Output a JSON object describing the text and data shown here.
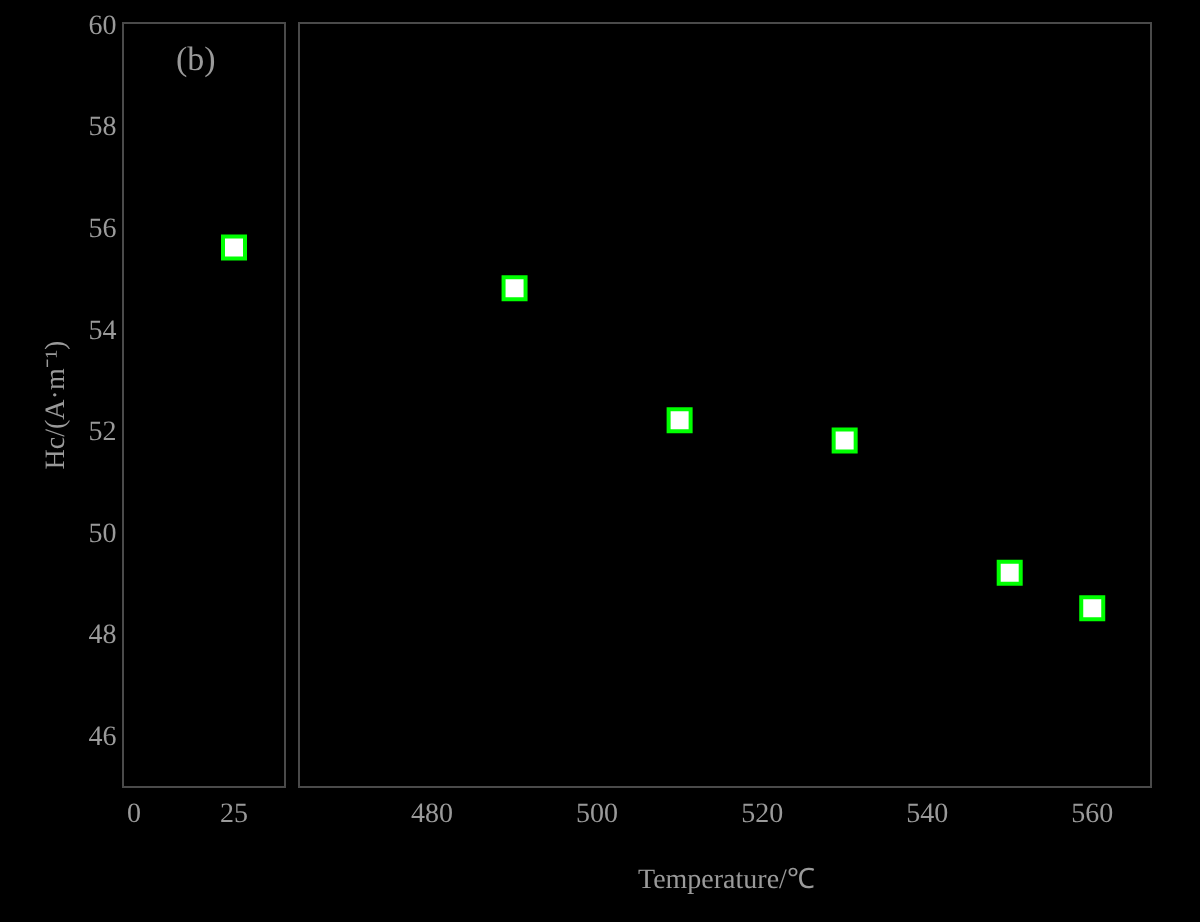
{
  "chart_data": [
    {
      "type": "scatter",
      "x": [
        25
      ],
      "series": [
        {
          "color": "#00ff00",
          "values": [
            55.6
          ]
        }
      ],
      "marker": "square",
      "ylabel": "Hc/(A·m⁻¹)",
      "annotations": [
        "(b)"
      ],
      "xlim": [
        -2.5,
        37.5
      ],
      "xticks": [
        0,
        25
      ],
      "ylim": [
        45,
        60
      ],
      "yticks": [
        46,
        48,
        50,
        52,
        54,
        56,
        58,
        60
      ],
      "grid": false
    },
    {
      "type": "scatter",
      "x": [
        490,
        510,
        530,
        550,
        560
      ],
      "series": [
        {
          "color": "#00ff00",
          "values": [
            54.8,
            52.2,
            51.8,
            49.2,
            48.5
          ]
        }
      ],
      "marker": "square",
      "xlabel": "Temperature/℃",
      "xlim": [
        464,
        567
      ],
      "xticks": [
        480,
        500,
        520,
        540,
        560
      ],
      "ylim": [
        45,
        60
      ],
      "yticks": [
        46,
        48,
        50,
        52,
        54,
        56,
        58,
        60
      ],
      "tick_labels": "x",
      "grid": false
    }
  ]
}
